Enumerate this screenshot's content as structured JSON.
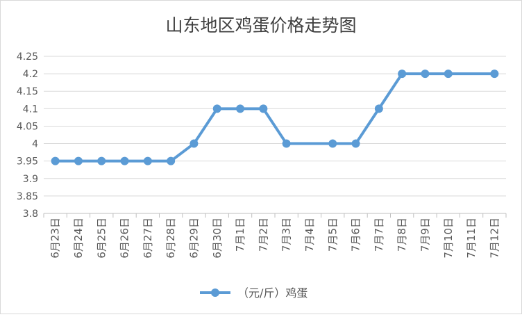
{
  "chart_data": {
    "type": "line",
    "title": "山东地区鸡蛋价格走势图",
    "xlabel": "",
    "ylabel": "",
    "categories": [
      "6月23日",
      "6月24日",
      "6月25日",
      "6月26日",
      "6月27日",
      "6月28日",
      "6月29日",
      "6月30日",
      "7月1日",
      "7月2日",
      "7月3日",
      "7月4日",
      "7月5日",
      "7月6日",
      "7月7日",
      "7月8日",
      "7月9日",
      "7月10日",
      "7月11日",
      "7月12日"
    ],
    "series": [
      {
        "name": "（元/斤）鸡蛋",
        "color": "#5b9bd5",
        "points": [
          {
            "category": "6月23日",
            "value": 3.95
          },
          {
            "category": "6月24日",
            "value": 3.95
          },
          {
            "category": "6月25日",
            "value": 3.95
          },
          {
            "category": "6月26日",
            "value": 3.95
          },
          {
            "category": "6月27日",
            "value": 3.95
          },
          {
            "category": "6月28日",
            "value": 3.95
          },
          {
            "category": "6月29日",
            "value": 4.0
          },
          {
            "category": "6月30日",
            "value": 4.1
          },
          {
            "category": "7月1日",
            "value": 4.1
          },
          {
            "category": "7月2日",
            "value": 4.1
          },
          {
            "category": "7月3日",
            "value": 4.0
          },
          {
            "category": "7月5日",
            "value": 4.0
          },
          {
            "category": "7月6日",
            "value": 4.0
          },
          {
            "category": "7月7日",
            "value": 4.1
          },
          {
            "category": "7月8日",
            "value": 4.2
          },
          {
            "category": "7月9日",
            "value": 4.2
          },
          {
            "category": "7月10日",
            "value": 4.2
          },
          {
            "category": "7月12日",
            "value": 4.2
          }
        ]
      }
    ],
    "yticks": [
      "3.8",
      "3.85",
      "3.9",
      "3.95",
      "4",
      "4.05",
      "4.1",
      "4.15",
      "4.2",
      "4.25"
    ],
    "ylim": [
      3.8,
      4.25
    ],
    "grid": true,
    "legend": "bottom"
  }
}
